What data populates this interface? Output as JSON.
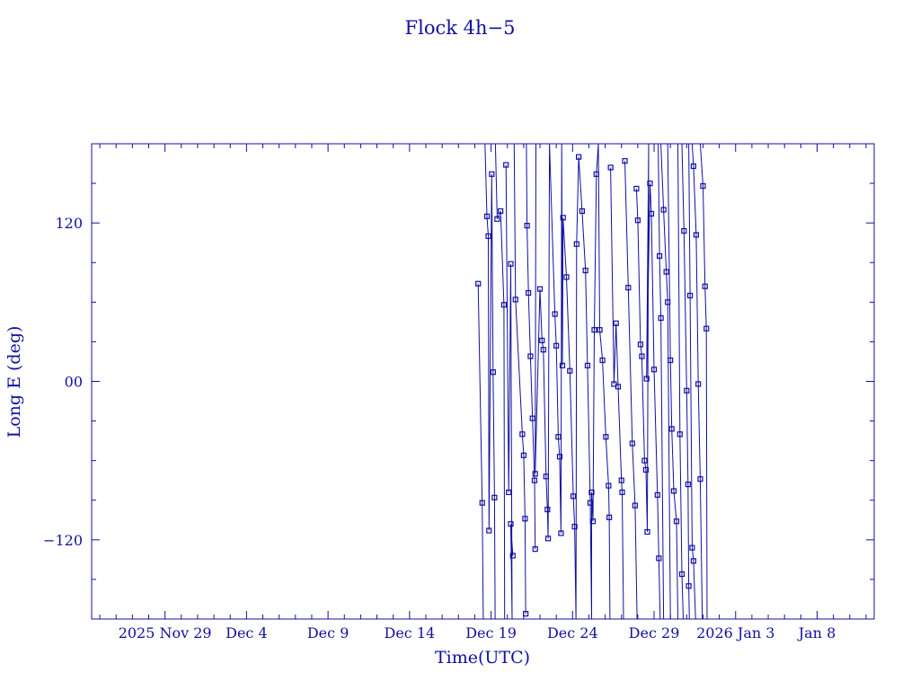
{
  "chart_data": {
    "type": "line",
    "title": "Flock 4h−5",
    "xlabel": "Time(UTC)",
    "ylabel": "Long E (deg)",
    "x_tick_labels": [
      "2025 Nov 29",
      "Dec  4",
      "Dec  9",
      "Dec 14",
      "Dec 19",
      "Dec 24",
      "Dec 29",
      "2026 Jan  3",
      "Jan  8"
    ],
    "x_ticks": [
      "2025-11-29",
      "2025-12-04",
      "2025-12-09",
      "2025-12-14",
      "2025-12-19",
      "2025-12-24",
      "2025-12-29",
      "2026-01-03",
      "2026-01-08"
    ],
    "xlim": [
      "2025-11-24T12:00",
      "2026-01-11T12:00"
    ],
    "y_ticks": [
      -120,
      0,
      120
    ],
    "y_tick_labels": [
      "−120",
      "00",
      "120"
    ],
    "ylim": [
      -180,
      180
    ],
    "color": "#1010a0",
    "grid": false,
    "series": [
      {
        "values": [
          [
            "2025-12-18T05:00",
            74
          ],
          [
            "2025-12-18T11:00",
            -92
          ],
          [
            "2025-12-18T12:30",
            -180
          ],
          [
            "2025-12-18T15:00",
            180
          ],
          [
            "2025-12-18T18:00",
            125
          ],
          [
            "2025-12-18T20:00",
            110
          ],
          [
            "2025-12-18T21:00",
            -113
          ],
          [
            "2025-12-19T01:00",
            157
          ],
          [
            "2025-12-19T03:00",
            7
          ],
          [
            "2025-12-19T05:00",
            -88
          ],
          [
            "2025-12-19T06:00",
            -180
          ],
          [
            "2025-12-19T06:20",
            180
          ],
          [
            "2025-12-19T09:00",
            123
          ],
          [
            "2025-12-19T14:00",
            129
          ],
          [
            "2025-12-19T19:00",
            58
          ],
          [
            "2025-12-19T20:00",
            -180
          ],
          [
            "2025-12-19T22:00",
            164
          ],
          [
            "2025-12-20T02:00",
            -84
          ],
          [
            "2025-12-20T05:00",
            89
          ],
          [
            "2025-12-20T07:00",
            -180
          ],
          [
            "2025-12-20T05:00",
            -108
          ],
          [
            "2025-12-20T08:00",
            -132
          ],
          [
            "2025-12-20T10:00",
            180
          ],
          [
            "2025-12-20T12:00",
            62
          ],
          [
            "2025-12-20T22:00",
            -40
          ],
          [
            "2025-12-21T00:00",
            -56
          ],
          [
            "2025-12-21T02:00",
            -104
          ],
          [
            "2025-12-21T03:00",
            -176
          ],
          [
            "2025-12-21T04:00",
            180
          ],
          [
            "2025-12-21T05:00",
            118
          ],
          [
            "2025-12-21T07:00",
            67
          ],
          [
            "2025-12-21T10:00",
            19
          ],
          [
            "2025-12-21T13:00",
            -28
          ],
          [
            "2025-12-21T16:00",
            -75
          ],
          [
            "2025-12-21T17:00",
            -127
          ],
          [
            "2025-12-21T18:00",
            180
          ],
          [
            "2025-12-21T17:00",
            -70
          ],
          [
            "2025-12-22T00:00",
            70
          ],
          [
            "2025-12-22T03:00",
            31
          ],
          [
            "2025-12-22T05:00",
            24
          ],
          [
            "2025-12-22T09:00",
            -72
          ],
          [
            "2025-12-22T11:00",
            -97
          ],
          [
            "2025-12-22T12:00",
            -119
          ],
          [
            "2025-12-22T14:00",
            180
          ],
          [
            "2025-12-22T22:00",
            51
          ],
          [
            "2025-12-23T00:00",
            27
          ],
          [
            "2025-12-23T03:00",
            -42
          ],
          [
            "2025-12-23T05:00",
            -57
          ],
          [
            "2025-12-23T07:00",
            -115
          ],
          [
            "2025-12-23T08:00",
            180
          ],
          [
            "2025-12-23T09:00",
            12
          ],
          [
            "2025-12-23T10:00",
            124
          ],
          [
            "2025-12-23T15:00",
            79
          ],
          [
            "2025-12-23T20:00",
            8
          ],
          [
            "2025-12-24T01:00",
            -87
          ],
          [
            "2025-12-24T03:00",
            -110
          ],
          [
            "2025-12-24T05:00",
            -180
          ],
          [
            "2025-12-24T06:00",
            104
          ],
          [
            "2025-12-24T09:00",
            170
          ],
          [
            "2025-12-24T14:00",
            129
          ],
          [
            "2025-12-24T19:00",
            84
          ],
          [
            "2025-12-24T22:00",
            12
          ],
          [
            "2025-12-25T02:00",
            -92
          ],
          [
            "2025-12-25T04:00",
            -180
          ],
          [
            "2025-12-25T04:00",
            -84
          ],
          [
            "2025-12-25T06:00",
            -106
          ],
          [
            "2025-12-25T08:00",
            39
          ],
          [
            "2025-12-25T11:00",
            157
          ],
          [
            "2025-12-25T14:00",
            180
          ],
          [
            "2025-12-25T16:00",
            39
          ],
          [
            "2025-12-25T20:00",
            16
          ],
          [
            "2025-12-26T01:00",
            -42
          ],
          [
            "2025-12-26T05:00",
            -79
          ],
          [
            "2025-12-26T06:00",
            -103
          ],
          [
            "2025-12-26T07:00",
            -180
          ],
          [
            "2025-12-26T08:00",
            162
          ],
          [
            "2025-12-26T13:00",
            -2
          ],
          [
            "2025-12-26T16:00",
            44
          ],
          [
            "2025-12-26T19:00",
            -4
          ],
          [
            "2025-12-27T00:00",
            -75
          ],
          [
            "2025-12-27T01:00",
            -84
          ],
          [
            "2025-12-27T03:00",
            -180
          ],
          [
            "2025-12-27T05:00",
            167
          ],
          [
            "2025-12-27T10:00",
            71
          ],
          [
            "2025-12-27T16:00",
            -47
          ],
          [
            "2025-12-27T20:00",
            -94
          ],
          [
            "2025-12-27T23:00",
            -180
          ],
          [
            "2025-12-27T22:00",
            146
          ],
          [
            "2025-12-28T00:00",
            122
          ],
          [
            "2025-12-28T04:00",
            28
          ],
          [
            "2025-12-28T06:00",
            19
          ],
          [
            "2025-12-28T10:00",
            -60
          ],
          [
            "2025-12-28T12:00",
            -67
          ],
          [
            "2025-12-28T14:00",
            -114
          ],
          [
            "2025-12-28T16:00",
            180
          ],
          [
            "2025-12-28T13:00",
            2
          ],
          [
            "2025-12-28T18:00",
            150
          ],
          [
            "2025-12-28T20:00",
            127
          ],
          [
            "2025-12-29T00:00",
            9
          ],
          [
            "2025-12-29T05:00",
            -86
          ],
          [
            "2025-12-29T07:00",
            -134
          ],
          [
            "2025-12-29T09:00",
            -180
          ]
        ]
      },
      {
        "values": [
          [
            "2025-12-29T06:00",
            180
          ],
          [
            "2025-12-29T08:00",
            95
          ],
          [
            "2025-12-29T10:00",
            48
          ],
          [
            "2025-12-29T14:00",
            -180
          ],
          [
            "2025-12-29T10:00",
            180
          ],
          [
            "2025-12-29T14:00",
            130
          ],
          [
            "2025-12-29T18:00",
            83
          ],
          [
            "2025-12-29T20:00",
            60
          ],
          [
            "2025-12-30T00:00",
            -180
          ],
          [
            "2025-12-29T20:00",
            180
          ],
          [
            "2025-12-30T00:00",
            16
          ],
          [
            "2025-12-30T02:00",
            -36
          ],
          [
            "2025-12-30T05:00",
            -83
          ],
          [
            "2025-12-30T09:00",
            -106
          ],
          [
            "2025-12-30T11:00",
            -180
          ],
          [
            "2025-12-30T11:00",
            180
          ],
          [
            "2025-12-30T14:00",
            -40
          ],
          [
            "2025-12-30T17:00",
            -146
          ],
          [
            "2025-12-30T19:00",
            -180
          ],
          [
            "2025-12-30T17:00",
            180
          ],
          [
            "2025-12-30T20:00",
            114
          ],
          [
            "2025-12-31T00:00",
            -7
          ],
          [
            "2025-12-31T02:00",
            -78
          ],
          [
            "2025-12-31T03:00",
            -155
          ],
          [
            "2025-12-31T04:00",
            -180
          ],
          [
            "2025-12-31T03:00",
            180
          ],
          [
            "2025-12-31T05:00",
            65
          ],
          [
            "2025-12-31T08:00",
            -126
          ],
          [
            "2025-12-31T10:00",
            -136
          ],
          [
            "2025-12-31T13:00",
            -180
          ],
          [
            "2025-12-31T08:00",
            180
          ],
          [
            "2025-12-31T10:00",
            163
          ],
          [
            "2025-12-31T14:00",
            111
          ],
          [
            "2025-12-31T17:00",
            -2
          ],
          [
            "2025-12-31T20:00",
            -74
          ],
          [
            "2025-12-31T23:00",
            -180
          ],
          [
            "2025-12-31T20:00",
            180
          ],
          [
            "2026-01-01T00:00",
            148
          ],
          [
            "2026-01-01T03:00",
            72
          ],
          [
            "2026-01-01T05:00",
            40
          ],
          [
            "2026-01-01T06:00",
            -180
          ]
        ]
      }
    ]
  }
}
